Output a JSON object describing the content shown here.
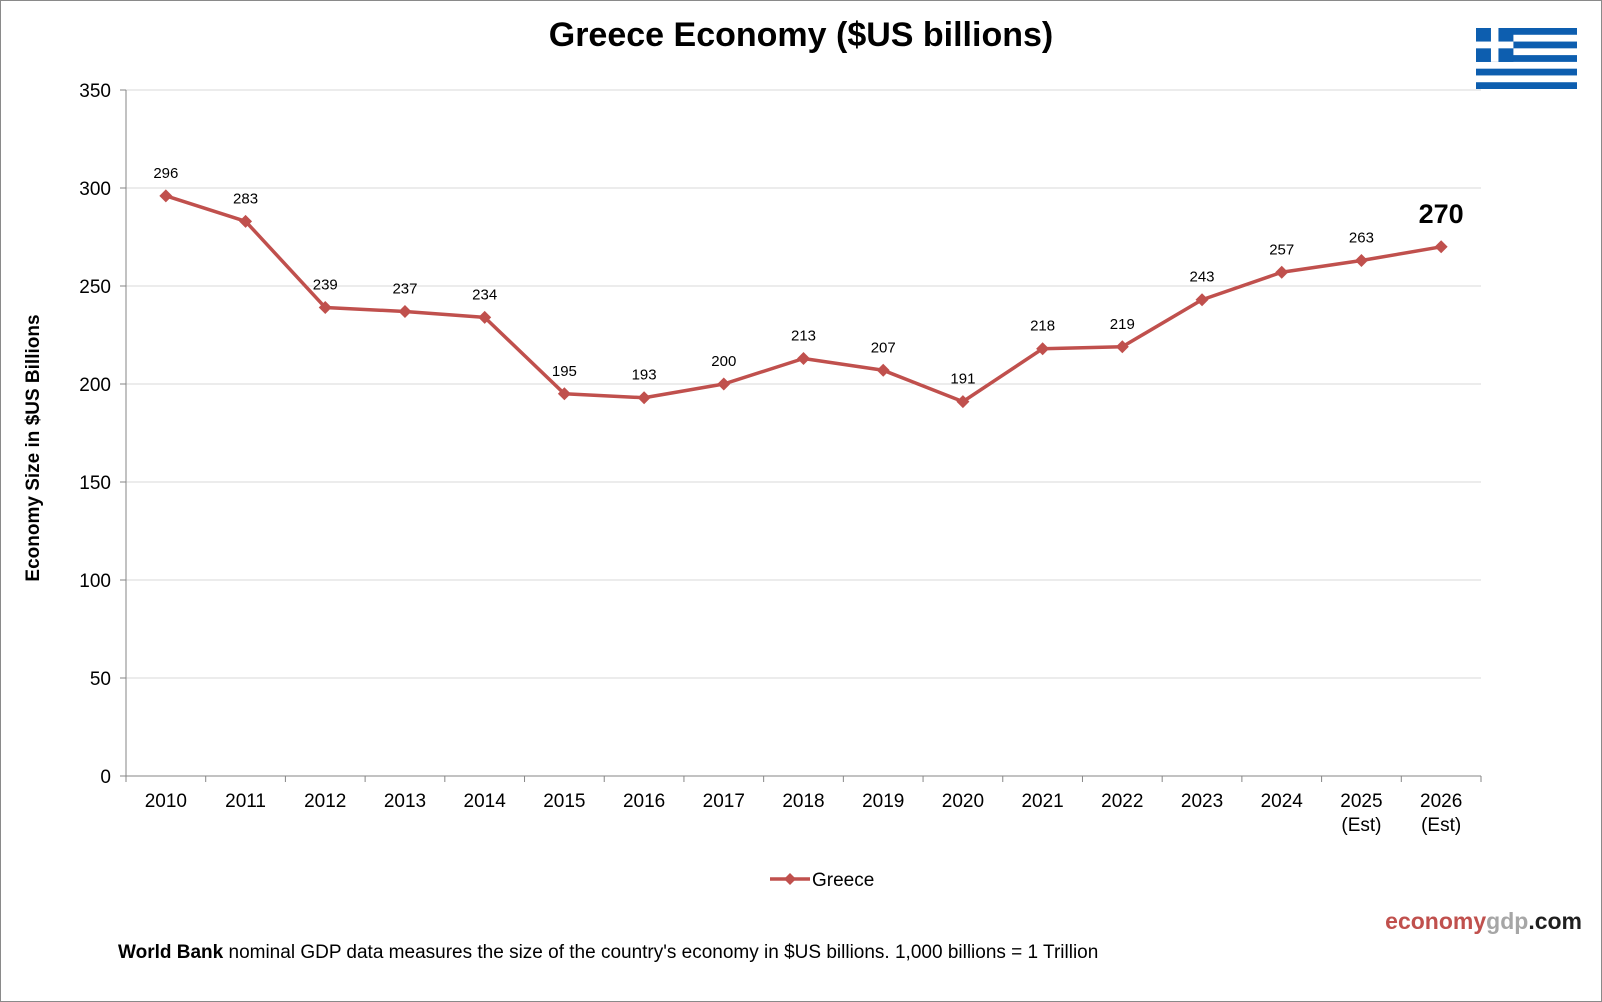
{
  "chart_data": {
    "type": "line",
    "title": "Greece Economy ($US billions)",
    "ylabel": "Economy Size in $US Billions",
    "xlabel": "",
    "ylim": [
      0,
      350
    ],
    "yticks": [
      0,
      50,
      100,
      150,
      200,
      250,
      300,
      350
    ],
    "grid": true,
    "legend_position": "bottom-center",
    "categories": [
      [
        "2010"
      ],
      [
        "2011"
      ],
      [
        "2012"
      ],
      [
        "2013"
      ],
      [
        "2014"
      ],
      [
        "2015"
      ],
      [
        "2016"
      ],
      [
        "2017"
      ],
      [
        "2018"
      ],
      [
        "2019"
      ],
      [
        "2020"
      ],
      [
        "2021"
      ],
      [
        "2022"
      ],
      [
        "2023"
      ],
      [
        "2024"
      ],
      [
        "2025",
        "(Est)"
      ],
      [
        "2026",
        "(Est)"
      ]
    ],
    "series": [
      {
        "name": "Greece",
        "color": "#c0504d",
        "marker": "diamond",
        "values": [
          296,
          283,
          239,
          237,
          234,
          195,
          193,
          200,
          213,
          207,
          191,
          218,
          219,
          243,
          257,
          263,
          270
        ],
        "labels": [
          "296",
          "283",
          "239",
          "237",
          "234",
          "195",
          "193",
          "200",
          "213",
          "207",
          "191",
          "218",
          "219",
          "243",
          "257",
          "263",
          "270"
        ],
        "highlight_last_label": true
      }
    ]
  },
  "footnote": {
    "bold": "World Bank",
    "text": " nominal GDP data  measures the size of the country's economy in $US billions. 1,000 billions = 1 Trillion"
  },
  "brand": {
    "part1": "economy",
    "part2": "gdp",
    "part3": ".com"
  },
  "flag": {
    "icon": "greece-flag-icon",
    "blue": "#0d5eaf",
    "white": "#ffffff"
  }
}
